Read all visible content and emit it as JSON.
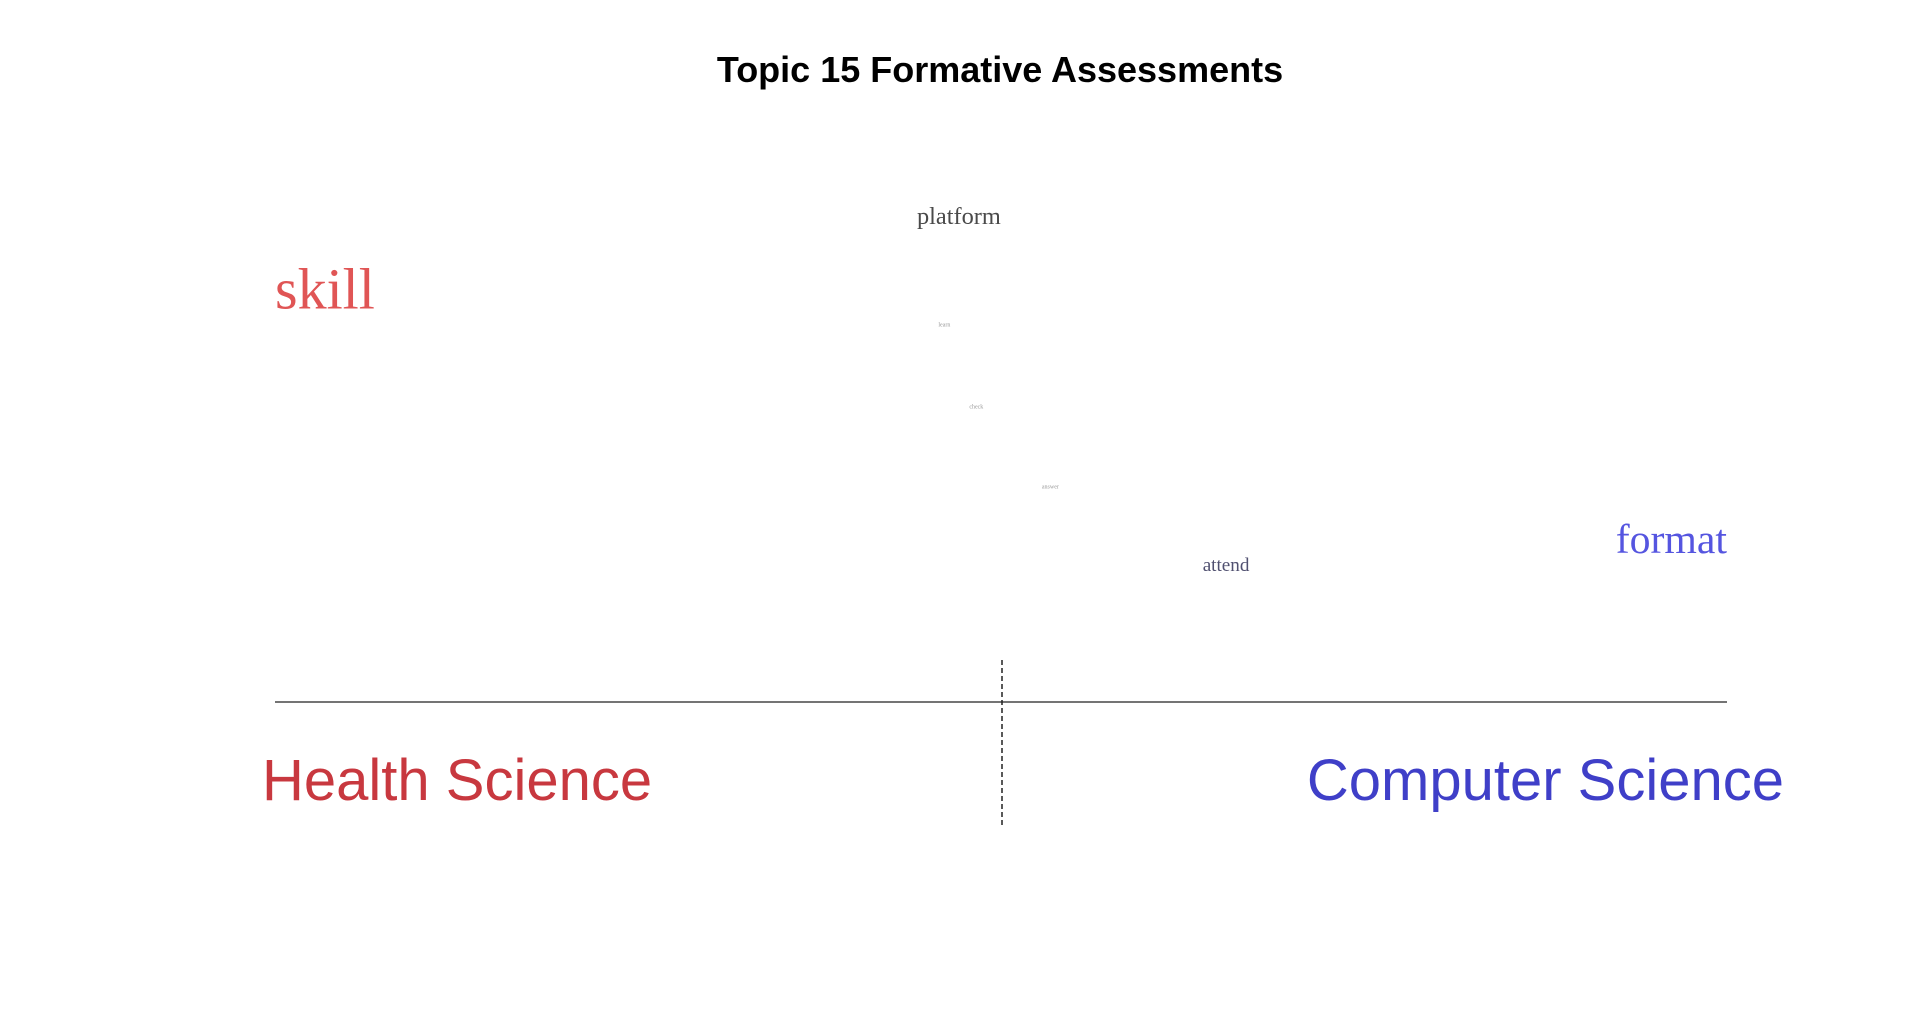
{
  "chart_data": {
    "type": "scatter",
    "title": "Topic 15 Formative Assessments",
    "xlabel": "",
    "ylabel": "",
    "xlim": [
      -1,
      1
    ],
    "ylim": [
      0,
      1
    ],
    "grid": false,
    "groups": [
      {
        "label": "Health Science",
        "color": "#c8383f"
      },
      {
        "label": "Computer Science",
        "color": "#3f3fc8"
      }
    ],
    "words": [
      {
        "text": "platform",
        "x": -0.058,
        "y": 0.935,
        "size": 0.42,
        "color": "#4a4a4a"
      },
      {
        "text": "skill",
        "x": -1.0,
        "y": 0.745,
        "size": 1.0,
        "color": "#e05555"
      },
      {
        "text": "learn",
        "x": -0.078,
        "y": 0.705,
        "size": 0.08,
        "color": "#9a9a9a"
      },
      {
        "text": "check",
        "x": -0.034,
        "y": 0.52,
        "size": 0.08,
        "color": "#9a9a9a"
      },
      {
        "text": "answer",
        "x": 0.068,
        "y": 0.34,
        "size": 0.08,
        "color": "#9a9a9a"
      },
      {
        "text": "attend",
        "x": 0.31,
        "y": 0.155,
        "size": 0.33,
        "color": "#505070"
      },
      {
        "text": "format",
        "x": 1.0,
        "y": 0.195,
        "size": 0.72,
        "color": "#5555e0"
      }
    ]
  }
}
